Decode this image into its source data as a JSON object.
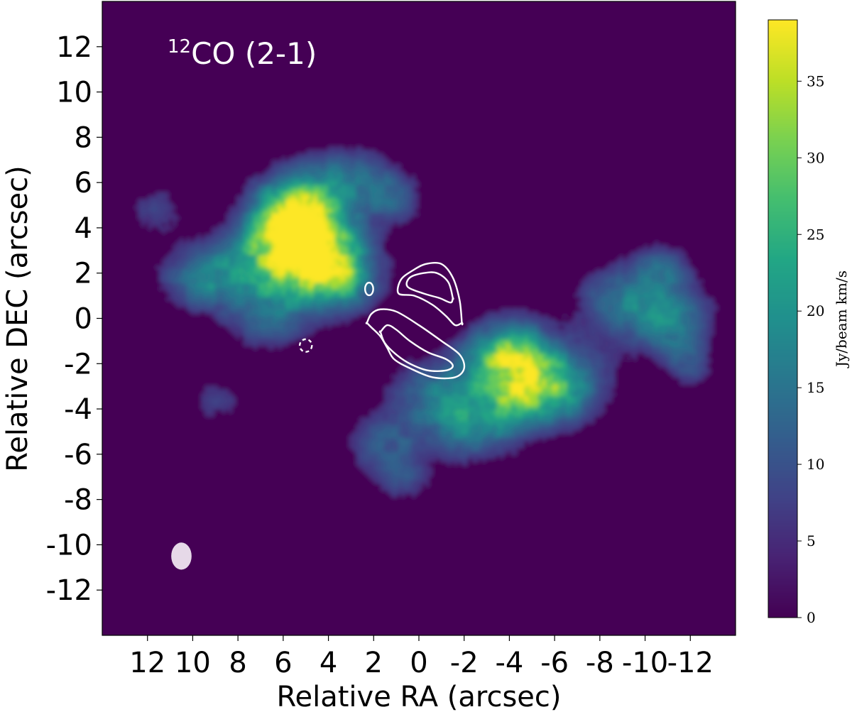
{
  "chart_data": {
    "type": "heatmap",
    "title": "¹²CO (2-1)",
    "title_parts": {
      "superscript": "12",
      "main": "CO (2-1)"
    },
    "xlabel": "Relative RA (arcsec)",
    "ylabel": "Relative DEC (arcsec)",
    "x_axis_direction": "RA increases to the left",
    "xlim": [
      14,
      -14
    ],
    "ylim": [
      -14,
      14
    ],
    "x_ticks": [
      12,
      10,
      8,
      6,
      4,
      2,
      0,
      -2,
      -4,
      -6,
      -8,
      -10,
      -12
    ],
    "x_tick_labels": [
      "12",
      "10",
      "8",
      "6",
      "4",
      "2",
      "0",
      "-2",
      "-4",
      "-6",
      "-8",
      "-10",
      "-12"
    ],
    "y_ticks": [
      12,
      10,
      8,
      6,
      4,
      2,
      0,
      -2,
      -4,
      -6,
      -8,
      -10,
      -12
    ],
    "y_tick_labels": [
      "12",
      "10",
      "8",
      "6",
      "4",
      "2",
      "0",
      "-2",
      "-4",
      "-6",
      "-8",
      "-10",
      "-12"
    ],
    "colormap": "viridis",
    "colorbar": {
      "label": "Jy/beam km/s",
      "range": [
        0,
        39
      ],
      "ticks": [
        0,
        5,
        10,
        15,
        20,
        25,
        30,
        35
      ],
      "tick_labels": [
        "0",
        "5",
        "10",
        "15",
        "20",
        "25",
        "30",
        "35"
      ]
    },
    "emission_peaks": [
      {
        "ra": 5.0,
        "dec": 3.2,
        "peak": 39
      },
      {
        "ra": 5.6,
        "dec": 4.6,
        "peak": 33
      },
      {
        "ra": 3.6,
        "dec": 1.9,
        "peak": 27
      },
      {
        "ra": -4.0,
        "dec": -1.6,
        "peak": 28
      },
      {
        "ra": -4.8,
        "dec": -3.2,
        "peak": 26
      },
      {
        "ra": -11.0,
        "dec": 0.0,
        "peak": 20
      }
    ],
    "contours": [
      {
        "style": "solid",
        "level": "outer",
        "ra": [
          -1.9,
          -1.8,
          -1.5,
          -1.0,
          -0.3,
          0.3,
          0.8,
          0.9,
          0.2,
          -0.6,
          -1.2,
          -1.6,
          -1.9
        ],
        "dec": [
          -0.2,
          0.8,
          1.8,
          2.4,
          2.4,
          2.1,
          1.7,
          1.1,
          1.0,
          0.6,
          0.1,
          -0.3,
          -0.2
        ]
      },
      {
        "style": "solid",
        "level": "inner",
        "ra": [
          -1.5,
          -1.3,
          -0.8,
          -0.2,
          0.4,
          0.5,
          -0.2,
          -0.9,
          -1.4,
          -1.5
        ],
        "dec": [
          0.9,
          1.6,
          2.0,
          2.0,
          1.8,
          1.4,
          1.1,
          0.9,
          0.7,
          0.9
        ]
      },
      {
        "style": "solid",
        "level": "outer",
        "ra": [
          2.3,
          2.1,
          1.7,
          1.0,
          0.0,
          -1.0,
          -1.8,
          -2.0,
          -1.6,
          -0.6,
          0.4,
          1.1,
          1.4,
          1.7,
          2.1,
          2.3
        ],
        "dec": [
          -0.2,
          0.2,
          0.4,
          0.3,
          -0.3,
          -1.0,
          -1.6,
          -2.2,
          -2.6,
          -2.6,
          -2.2,
          -1.8,
          -1.3,
          -0.8,
          -0.4,
          -0.2
        ]
      },
      {
        "style": "solid",
        "level": "inner",
        "ra": [
          1.7,
          1.4,
          1.0,
          0.4,
          -0.4,
          -1.2,
          -1.5,
          -1.2,
          -0.4,
          0.4,
          1.0,
          1.5,
          1.7
        ],
        "dec": [
          -0.6,
          -0.3,
          -0.5,
          -1.0,
          -1.5,
          -1.8,
          -2.1,
          -2.3,
          -2.3,
          -2.0,
          -1.6,
          -1.1,
          -0.6
        ]
      },
      {
        "style": "solid",
        "level": "outer",
        "ra": [
          2.2,
          1.85,
          2.2,
          2.2
        ],
        "dec": [
          1.2,
          1.4,
          1.6,
          1.2
        ],
        "ellipse": {
          "ra": 2.2,
          "dec": 1.3,
          "rx": 0.18,
          "ry": 0.28
        }
      },
      {
        "style": "dashed",
        "level": "negative",
        "ellipse": {
          "ra": 5.0,
          "dec": -1.2,
          "rx": 0.27,
          "ry": 0.28
        }
      }
    ],
    "beam": {
      "ra": 10.5,
      "dec": -10.5,
      "major": 1.2,
      "minor": 0.9
    }
  }
}
